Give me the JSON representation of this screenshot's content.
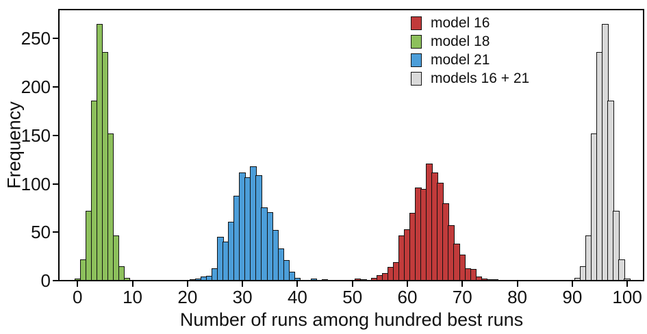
{
  "figure": {
    "background": "#ffffff"
  },
  "chart_data": {
    "type": "bar",
    "subtype": "histogram",
    "title": "",
    "xlabel": "Number of runs among hundred best runs",
    "ylabel": "Frequency",
    "xlim": [
      -3.4,
      103.1
    ],
    "ylim": [
      0,
      280
    ],
    "x_ticks": [
      0,
      10,
      20,
      30,
      40,
      50,
      60,
      70,
      80,
      90,
      100
    ],
    "y_ticks": [
      0,
      50,
      100,
      150,
      200,
      250
    ],
    "bin_width": 1,
    "grid": false,
    "legend_position": "upper center inside",
    "axis_color": "#000000",
    "bar_edge_color": "#111111",
    "series": [
      {
        "name": "model 16",
        "color": "#c13b3b",
        "x": [
          51,
          52,
          54,
          55,
          56,
          57,
          58,
          59,
          60,
          61,
          62,
          63,
          64,
          65,
          66,
          67,
          68,
          69,
          70,
          71,
          72,
          73,
          74,
          75,
          76
        ],
        "counts": [
          2,
          1,
          3,
          6,
          8,
          14,
          19,
          47,
          53,
          70,
          96,
          95,
          121,
          112,
          101,
          80,
          57,
          38,
          27,
          13,
          12,
          4,
          2,
          1,
          1
        ]
      },
      {
        "name": "model 18",
        "color": "#8dc05c",
        "x": [
          0,
          1,
          2,
          3,
          4,
          5,
          6,
          7,
          8,
          9
        ],
        "counts": [
          2,
          22,
          72,
          186,
          265,
          236,
          152,
          47,
          15,
          3
        ]
      },
      {
        "name": "model 21",
        "color": "#4c9ed9",
        "x": [
          21,
          22,
          23,
          24,
          25,
          26,
          27,
          28,
          29,
          30,
          31,
          32,
          33,
          34,
          35,
          36,
          37,
          38,
          39,
          40,
          43,
          45
        ],
        "counts": [
          1,
          2,
          4,
          5,
          13,
          45,
          40,
          61,
          88,
          112,
          107,
          118,
          109,
          76,
          71,
          52,
          33,
          21,
          9,
          3,
          2,
          1
        ]
      },
      {
        "name": "models 16 + 21",
        "color": "#d9d9d9",
        "x": [
          91,
          92,
          93,
          94,
          95,
          96,
          97,
          98,
          99,
          100
        ],
        "counts": [
          3,
          15,
          47,
          152,
          236,
          265,
          186,
          72,
          22,
          2
        ]
      }
    ]
  }
}
